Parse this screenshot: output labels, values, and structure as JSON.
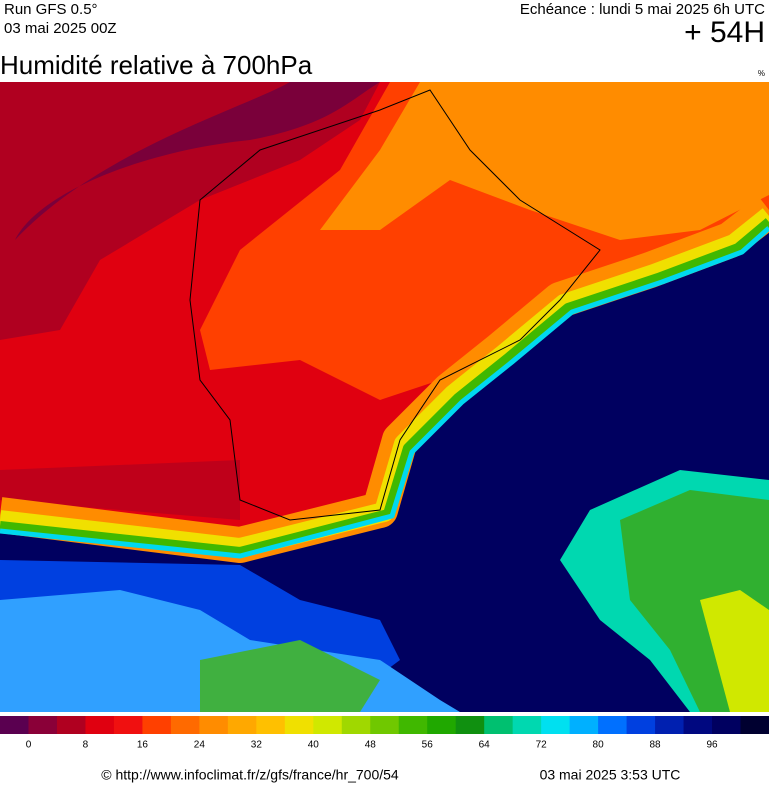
{
  "header": {
    "run": "Run GFS 0.5°",
    "run_date": "03 mai 2025 00Z",
    "valid_time": "Echéance : lundi 5 mai 2025 6h UTC",
    "lead": "+ 54H"
  },
  "title": "Humidité relative à 700hPa",
  "unit": "%",
  "colorbar": {
    "colors": [
      "#5a0050",
      "#8a0038",
      "#b00020",
      "#e00010",
      "#f01010",
      "#ff4000",
      "#ff6a00",
      "#ff8c00",
      "#ffa800",
      "#ffc000",
      "#f0e000",
      "#d0e800",
      "#a0d800",
      "#70c800",
      "#40b800",
      "#20a800",
      "#109010",
      "#00c070",
      "#00d8b0",
      "#00e0f0",
      "#00b0ff",
      "#0070ff",
      "#0040e0",
      "#0020b0",
      "#000880",
      "#000060",
      "#000030"
    ],
    "labels": [
      0,
      8,
      16,
      24,
      32,
      40,
      48,
      56,
      64,
      72,
      80,
      88,
      96
    ]
  },
  "footer": {
    "source": "© http://www.infoclimat.fr/z/gfs/france/hr_700/54",
    "timestamp": "03 mai 2025  3:53 UTC"
  }
}
